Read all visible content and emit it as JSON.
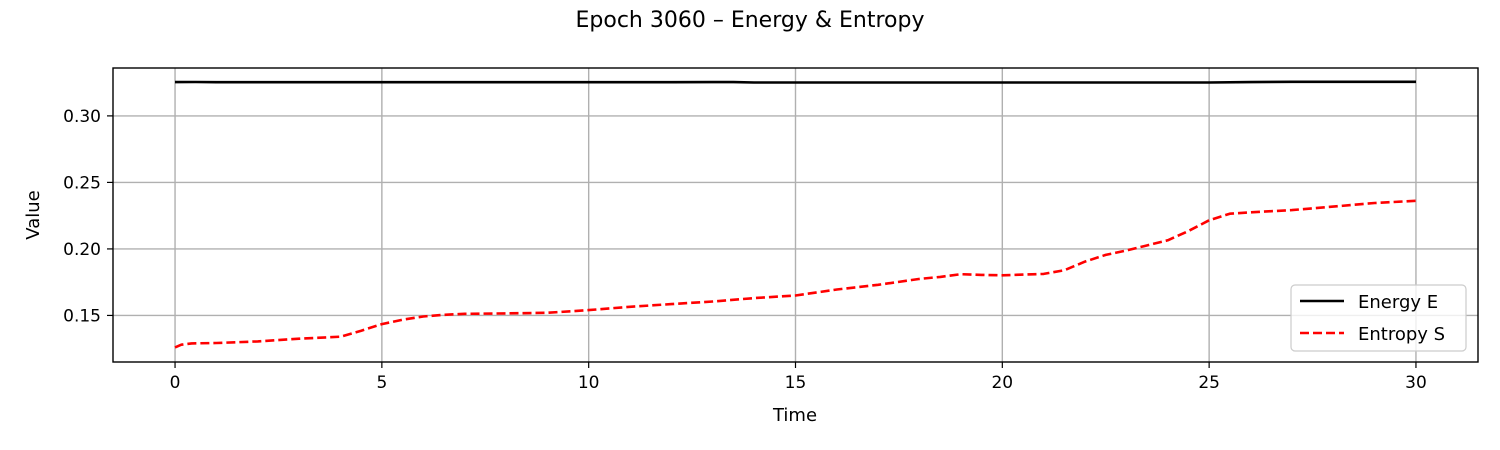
{
  "chart_data": {
    "type": "line",
    "title": "Epoch 3060 – Energy & Entropy",
    "xlabel": "Time",
    "ylabel": "Value",
    "xlim": [
      -1.5,
      31.5
    ],
    "ylim": [
      0.115,
      0.336
    ],
    "xticks": [
      0,
      5,
      10,
      15,
      20,
      25,
      30
    ],
    "xtick_labels": [
      "0",
      "5",
      "10",
      "15",
      "20",
      "25",
      "30"
    ],
    "yticks": [
      0.15,
      0.2,
      0.25,
      0.3
    ],
    "ytick_labels": [
      "0.15",
      "0.20",
      "0.25",
      "0.30"
    ],
    "grid": true,
    "legend_position": "lower-right",
    "series": [
      {
        "name": "Energy E",
        "color": "#000000",
        "style": "solid",
        "x": [
          0,
          0.5,
          1,
          2,
          3,
          4,
          5,
          6,
          7,
          8,
          9,
          10,
          11,
          12,
          13,
          13.5,
          14,
          15,
          16,
          17,
          18,
          19,
          20,
          21,
          22,
          23,
          24,
          25,
          26,
          27,
          28,
          29,
          30
        ],
        "y": [
          0.3254,
          0.3255,
          0.3253,
          0.3253,
          0.3253,
          0.3253,
          0.3253,
          0.3253,
          0.3253,
          0.3253,
          0.3253,
          0.3253,
          0.3253,
          0.3253,
          0.3254,
          0.3254,
          0.3251,
          0.3251,
          0.3251,
          0.3251,
          0.3251,
          0.3251,
          0.3251,
          0.3251,
          0.3251,
          0.3251,
          0.3251,
          0.3251,
          0.3254,
          0.3256,
          0.3256,
          0.3256,
          0.3256
        ]
      },
      {
        "name": "Entropy S",
        "color": "#ff0000",
        "style": "dashed",
        "x": [
          0,
          0.15,
          0.4,
          1,
          2,
          3,
          4,
          4.5,
          5,
          5.5,
          6,
          6.5,
          7,
          8,
          9,
          10,
          11,
          12,
          13,
          14,
          15,
          16,
          17,
          18,
          18.5,
          19,
          19.5,
          20,
          21,
          21.5,
          22,
          22.5,
          23,
          24,
          24.5,
          25,
          25.5,
          26,
          27,
          28,
          29,
          30
        ],
        "y": [
          0.126,
          0.128,
          0.129,
          0.1293,
          0.1305,
          0.1325,
          0.134,
          0.1385,
          0.1435,
          0.1468,
          0.1492,
          0.1505,
          0.1512,
          0.1515,
          0.152,
          0.154,
          0.1565,
          0.1585,
          0.1605,
          0.163,
          0.165,
          0.1695,
          0.173,
          0.1775,
          0.179,
          0.181,
          0.1805,
          0.1802,
          0.1812,
          0.184,
          0.1905,
          0.1955,
          0.1988,
          0.2065,
          0.2135,
          0.2215,
          0.2265,
          0.2275,
          0.2292,
          0.2318,
          0.2345,
          0.2362
        ]
      }
    ]
  }
}
